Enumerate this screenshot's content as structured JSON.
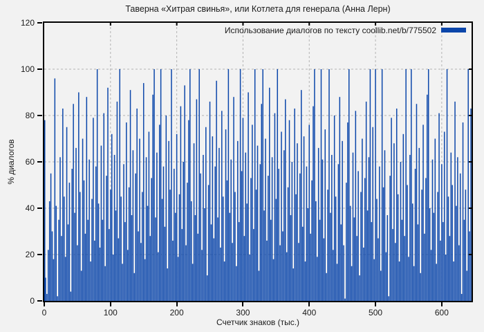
{
  "title": "Таверна «Хитрая свинья», или Котлета для генерала (Анна Лерн)",
  "legend": {
    "label": "Использование диалогов по тексту coollib.net/b/775502",
    "position": "top-right"
  },
  "axes": {
    "x": {
      "label": "Счетчик знаков (тыс.)",
      "ticks": [
        0,
        100,
        200,
        300,
        400,
        500,
        600
      ],
      "min": 0,
      "max": 645
    },
    "y": {
      "label": "% диалогов",
      "ticks": [
        0,
        20,
        40,
        60,
        80,
        100,
        120
      ],
      "min": 0,
      "max": 120
    }
  },
  "colors": {
    "bar": "#0b46aa",
    "background": "#f2f2f2",
    "grid": "#b3b3b3",
    "frame": "#000000",
    "text": "#1a1a1a"
  },
  "chart_data": {
    "type": "bar",
    "title": "Таверна «Хитрая свинья», или Котлета для генерала (Анна Лерн)",
    "xlabel": "Счетчик знаков (тыс.)",
    "ylabel": "% диалогов",
    "xlim": [
      0,
      645
    ],
    "ylim": [
      0,
      120
    ],
    "grid": true,
    "legend_position": "top-right",
    "x_start": 0,
    "x_step": 2,
    "series": [
      {
        "name": "Использование диалогов по тексту coollib.net/b/775502",
        "values": [
          78,
          10,
          3,
          22,
          43,
          55,
          30,
          18,
          96,
          41,
          2,
          35,
          62,
          28,
          83,
          45,
          19,
          75,
          33,
          51,
          4,
          57,
          85,
          38,
          66,
          24,
          90,
          47,
          13,
          70,
          52,
          29,
          88,
          35,
          61,
          17,
          44,
          79,
          26,
          58,
          100,
          42,
          23,
          67,
          35,
          81,
          15,
          54,
          92,
          31,
          48,
          72,
          20,
          63,
          39,
          86,
          27,
          100,
          45,
          16,
          59,
          34,
          77,
          22,
          49,
          91,
          37,
          65,
          12,
          55,
          83,
          30,
          70,
          25,
          47,
          94,
          18,
          62,
          41,
          73,
          28,
          53,
          89,
          100,
          36,
          64,
          21,
          76,
          100,
          44,
          58,
          32,
          80,
          14,
          69,
          48,
          100,
          26,
          57,
          38,
          72,
          19,
          46,
          84,
          31,
          60,
          93,
          24,
          51,
          78,
          100,
          43,
          16,
          68,
          37,
          87,
          29,
          100,
          55,
          22,
          63,
          40,
          75,
          11,
          50,
          86,
          33,
          71,
          27,
          58,
          95,
          36,
          66,
          23,
          82,
          45,
          17,
          74,
          52,
          100,
          38,
          61,
          25,
          88,
          47,
          15,
          69,
          34,
          100,
          56,
          79,
          28,
          64,
          42,
          90,
          20,
          53,
          76,
          31,
          100,
          48,
          67,
          13,
          59,
          85,
          100,
          39,
          70,
          26,
          54,
          92,
          35,
          62,
          18,
          81,
          44,
          100,
          57,
          24,
          73,
          30,
          65,
          87,
          21,
          49,
          78,
          37,
          60,
          14,
          83,
          46,
          68,
          25,
          55,
          91,
          32,
          71,
          17,
          58,
          40,
          76,
          29,
          52,
          84,
          100,
          43,
          19,
          66,
          35,
          100,
          61,
          27,
          74,
          12,
          48,
          100,
          38,
          63,
          22,
          80,
          45,
          16,
          59,
          88,
          33,
          69,
          24,
          1,
          51,
          77,
          100,
          41,
          15,
          64,
          36,
          82,
          28,
          56,
          11,
          47,
          70,
          23,
          53,
          86,
          39,
          62,
          100,
          34,
          75,
          18,
          100,
          44,
          27,
          58,
          13,
          100,
          49,
          65,
          21,
          37,
          2,
          54,
          79,
          31,
          68,
          25,
          83,
          46,
          17,
          60,
          35,
          72,
          28,
          100,
          50,
          19,
          63,
          100,
          42,
          15,
          57,
          85,
          33,
          66,
          12,
          48,
          76,
          29,
          53,
          89,
          100,
          40,
          22,
          61,
          38,
          70,
          16,
          47,
          81,
          26,
          59,
          34,
          73,
          20,
          100,
          45,
          28,
          64,
          50,
          17,
          86,
          41,
          62,
          24,
          55,
          3,
          77,
          35,
          48,
          13,
          100,
          30,
          83
        ]
      }
    ]
  }
}
